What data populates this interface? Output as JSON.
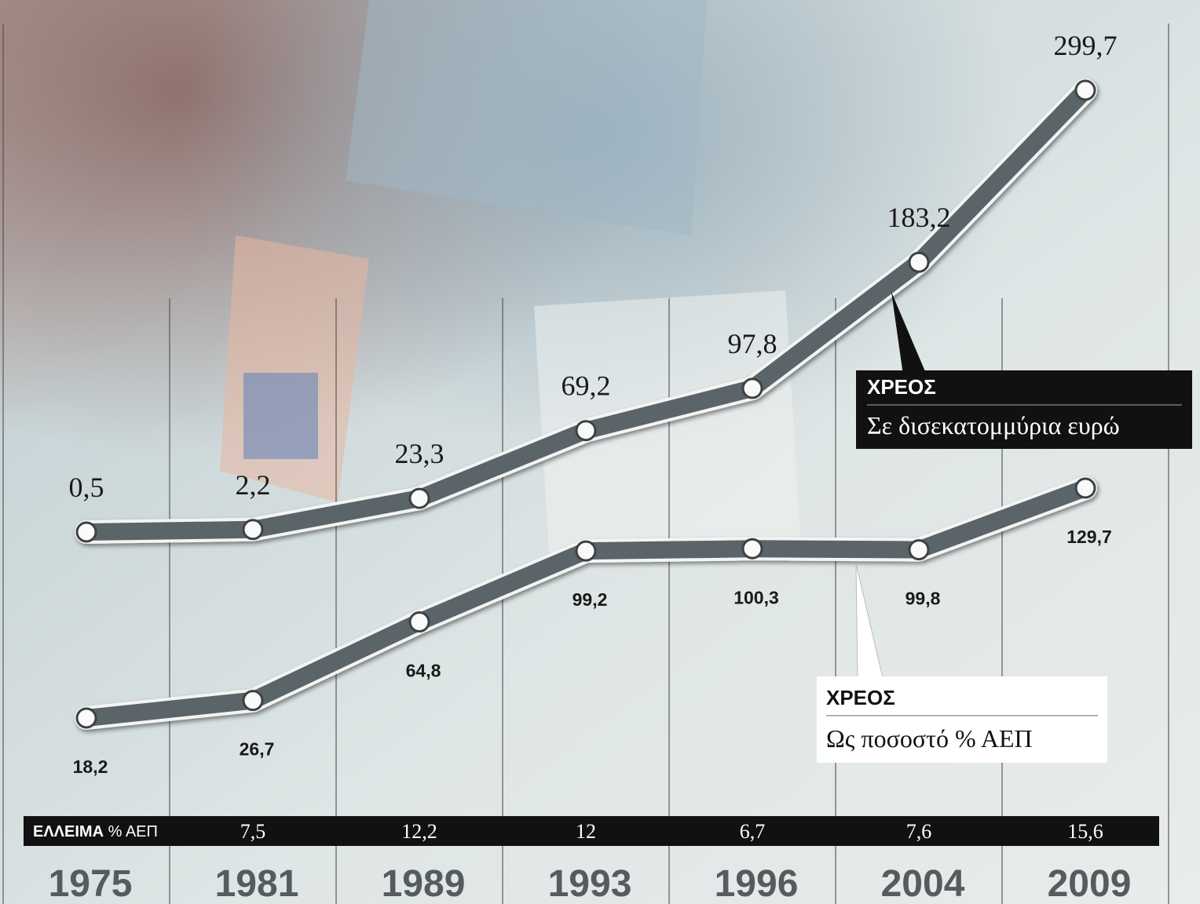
{
  "chart_data": {
    "type": "line",
    "categories": [
      "1975",
      "1981",
      "1989",
      "1993",
      "1996",
      "2004",
      "2009"
    ],
    "series": [
      {
        "name": "ΧΡΕΟΣ",
        "unit": "Σε δισεκατομμύρια ευρώ",
        "color": "#5b6468",
        "values": [
          0.5,
          2.2,
          23.3,
          69.2,
          97.8,
          183.2,
          299.7
        ],
        "value_labels": [
          "0,5",
          "2,2",
          "23,3",
          "69,2",
          "97,8",
          "183,2",
          "299,7"
        ]
      },
      {
        "name": "ΧΡΕΟΣ",
        "unit": "Ως ποσοστό % ΑΕΠ",
        "color": "#5b6468",
        "values": [
          18.2,
          26.7,
          64.8,
          99.2,
          100.3,
          99.8,
          129.7
        ],
        "value_labels": [
          "18,2",
          "26,7",
          "64,8",
          "99,2",
          "100,3",
          "99,8",
          "129,7"
        ]
      }
    ],
    "deficit": {
      "name": "ΕΛΛΕΙΜΑ",
      "unit": "% ΑΕΠ",
      "values": [
        null,
        7.5,
        12.2,
        12,
        6.7,
        7.6,
        15.6
      ],
      "value_labels": [
        null,
        "7,5",
        "12,2",
        "12",
        "6,7",
        "7,6",
        "15,6"
      ]
    }
  }
}
